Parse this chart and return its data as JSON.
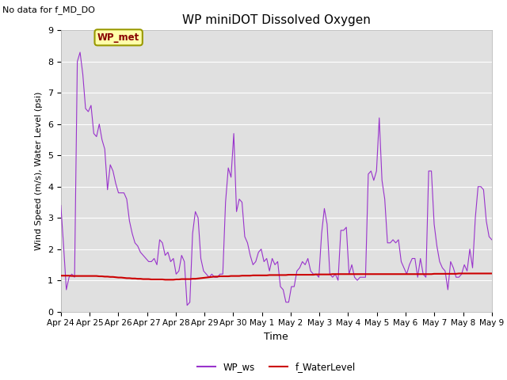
{
  "title": "WP miniDOT Dissolved Oxygen",
  "top_left_text": "No data for f_MD_DO",
  "ylabel": "Wind Speed (m/s), Water Level (psi)",
  "xlabel": "Time",
  "annotation_box": "WP_met",
  "ylim": [
    0.0,
    9.0
  ],
  "yticks": [
    0.0,
    1.0,
    2.0,
    3.0,
    4.0,
    5.0,
    6.0,
    7.0,
    8.0,
    9.0
  ],
  "xtick_labels": [
    "Apr 24",
    "Apr 25",
    "Apr 26",
    "Apr 27",
    "Apr 28",
    "Apr 29",
    "Apr 30",
    "May 1",
    "May 2",
    "May 3",
    "May 4",
    "May 5",
    "May 6",
    "May 7",
    "May 8",
    "May 9"
  ],
  "bg_color": "#e8e8e8",
  "plot_bg_color": "#e0e0e0",
  "wp_ws_color": "#9933cc",
  "f_waterlevel_color": "#cc0000",
  "legend_labels": [
    "WP_ws",
    "f_WaterLevel"
  ],
  "wp_ws_data": [
    3.4,
    2.1,
    0.7,
    1.1,
    1.2,
    1.1,
    8.0,
    8.3,
    7.6,
    6.5,
    6.4,
    6.6,
    5.7,
    5.6,
    6.0,
    5.5,
    5.2,
    3.9,
    4.7,
    4.5,
    4.1,
    3.8,
    3.8,
    3.8,
    3.6,
    2.9,
    2.5,
    2.2,
    2.1,
    1.9,
    1.8,
    1.7,
    1.6,
    1.6,
    1.7,
    1.5,
    2.3,
    2.2,
    1.8,
    1.9,
    1.6,
    1.7,
    1.2,
    1.3,
    1.8,
    1.6,
    0.2,
    0.3,
    2.5,
    3.2,
    3.0,
    1.7,
    1.3,
    1.2,
    1.1,
    1.2,
    1.1,
    1.1,
    1.2,
    1.2,
    3.5,
    4.6,
    4.3,
    5.7,
    3.2,
    3.6,
    3.5,
    2.4,
    2.2,
    1.8,
    1.5,
    1.6,
    1.9,
    2.0,
    1.6,
    1.7,
    1.3,
    1.7,
    1.5,
    1.6,
    0.8,
    0.7,
    0.3,
    0.3,
    0.8,
    0.8,
    1.3,
    1.4,
    1.6,
    1.5,
    1.7,
    1.3,
    1.2,
    1.2,
    1.1,
    2.5,
    3.3,
    2.8,
    1.2,
    1.1,
    1.2,
    1.0,
    2.6,
    2.6,
    2.7,
    1.2,
    1.5,
    1.1,
    1.0,
    1.1,
    1.1,
    1.1,
    4.4,
    4.5,
    4.2,
    4.5,
    6.2,
    4.2,
    3.6,
    2.2,
    2.2,
    2.3,
    2.2,
    2.3,
    1.6,
    1.4,
    1.2,
    1.5,
    1.7,
    1.7,
    1.1,
    1.7,
    1.2,
    1.1,
    4.5,
    4.5,
    2.8,
    2.1,
    1.6,
    1.4,
    1.3,
    0.7,
    1.6,
    1.4,
    1.1,
    1.1,
    1.2,
    1.5,
    1.3,
    2.0,
    1.4,
    3.0,
    4.0,
    4.0,
    3.9,
    2.9,
    2.4,
    2.3
  ],
  "f_waterlevel_data": [
    1.15,
    1.15,
    1.15,
    1.15,
    1.14,
    1.14,
    1.14,
    1.14,
    1.14,
    1.14,
    1.14,
    1.14,
    1.14,
    1.14,
    1.13,
    1.13,
    1.12,
    1.12,
    1.11,
    1.11,
    1.1,
    1.09,
    1.09,
    1.08,
    1.07,
    1.07,
    1.06,
    1.06,
    1.05,
    1.05,
    1.04,
    1.04,
    1.04,
    1.03,
    1.03,
    1.03,
    1.03,
    1.03,
    1.02,
    1.02,
    1.02,
    1.02,
    1.03,
    1.03,
    1.04,
    1.04,
    1.04,
    1.04,
    1.05,
    1.05,
    1.06,
    1.07,
    1.08,
    1.09,
    1.1,
    1.11,
    1.12,
    1.12,
    1.13,
    1.13,
    1.13,
    1.13,
    1.14,
    1.14,
    1.14,
    1.14,
    1.15,
    1.15,
    1.15,
    1.15,
    1.16,
    1.16,
    1.16,
    1.16,
    1.16,
    1.16,
    1.17,
    1.17,
    1.17,
    1.17,
    1.17,
    1.17,
    1.17,
    1.18,
    1.18,
    1.18,
    1.18,
    1.18,
    1.18,
    1.18,
    1.18,
    1.18,
    1.18,
    1.19,
    1.19,
    1.19,
    1.19,
    1.19,
    1.19,
    1.2,
    1.2,
    1.2,
    1.2,
    1.2,
    1.2,
    1.2,
    1.2,
    1.2,
    1.2,
    1.2,
    1.2,
    1.2,
    1.2,
    1.2,
    1.2,
    1.2,
    1.2,
    1.2,
    1.2,
    1.2,
    1.2,
    1.2,
    1.2,
    1.2,
    1.2,
    1.2,
    1.2,
    1.2,
    1.2,
    1.2,
    1.2,
    1.2,
    1.2,
    1.2,
    1.2,
    1.2,
    1.21,
    1.21,
    1.21,
    1.21,
    1.21,
    1.21,
    1.21,
    1.21,
    1.21,
    1.22,
    1.22,
    1.22,
    1.22,
    1.22,
    1.22,
    1.22,
    1.22,
    1.22,
    1.22,
    1.22,
    1.22,
    1.22
  ]
}
